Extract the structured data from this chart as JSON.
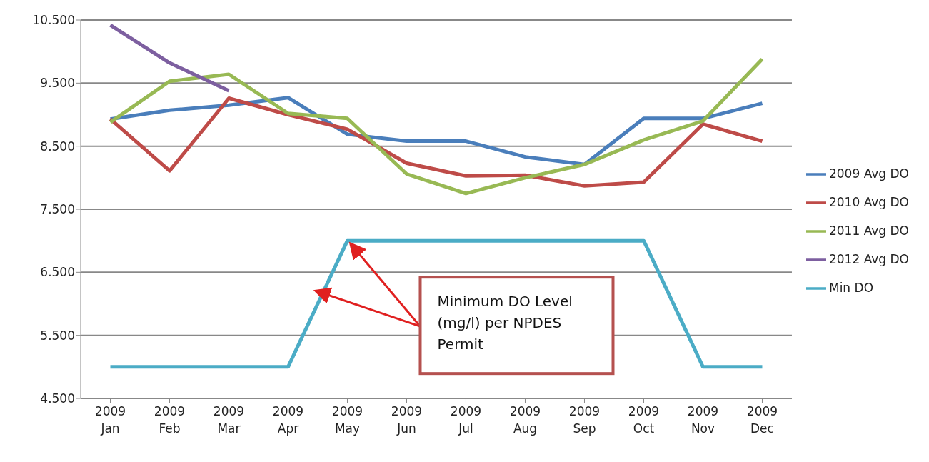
{
  "chart_data": {
    "type": "line",
    "categories": [
      "2009 Jan",
      "2009 Feb",
      "2009 Mar",
      "2009 Apr",
      "2009 May",
      "2009 Jun",
      "2009 Jul",
      "2009 Aug",
      "2009 Sep",
      "2009 Oct",
      "2009 Nov",
      "2009 Dec"
    ],
    "series": [
      {
        "name": "2009 Avg DO",
        "color": "#4a7ebb",
        "values": [
          8.93,
          9.07,
          9.15,
          9.27,
          8.69,
          8.58,
          8.58,
          8.33,
          8.21,
          8.94,
          8.94,
          9.18
        ]
      },
      {
        "name": "2010 Avg DO",
        "color": "#be4b48",
        "values": [
          8.93,
          8.11,
          9.26,
          9.0,
          8.77,
          8.23,
          8.03,
          8.04,
          7.87,
          7.93,
          8.85,
          8.58
        ]
      },
      {
        "name": "2011 Avg DO",
        "color": "#98b954",
        "values": [
          8.88,
          9.53,
          9.64,
          9.02,
          8.94,
          8.06,
          7.75,
          8.0,
          8.21,
          8.6,
          8.9,
          9.88
        ]
      },
      {
        "name": "2012 Avg DO",
        "color": "#7d5fa0",
        "values": [
          10.42,
          9.82,
          9.38,
          null,
          null,
          null,
          null,
          null,
          null,
          null,
          null,
          null
        ]
      },
      {
        "name": "Min DO",
        "color": "#4bacc6",
        "values": [
          5,
          5,
          5,
          5,
          7,
          7,
          7,
          7,
          7,
          7,
          5,
          5
        ]
      }
    ],
    "ylim": [
      4.5,
      10.5
    ],
    "yticks": [
      {
        "value": 4.5,
        "label": "4.500"
      },
      {
        "value": 5.5,
        "label": "5.500"
      },
      {
        "value": 6.5,
        "label": "6.500"
      },
      {
        "value": 7.5,
        "label": "7.500"
      },
      {
        "value": 8.5,
        "label": "8.500"
      },
      {
        "value": 9.5,
        "label": "9.500"
      },
      {
        "value": 10.5,
        "label": "10.500"
      }
    ],
    "grid": "y",
    "legend": "right",
    "marker": "none",
    "line_style": "solid",
    "annotations": [
      {
        "text": "Minimum DO Level (mg/l) per NPDES Permit",
        "x": "2009 May",
        "y": 7
      }
    ]
  }
}
